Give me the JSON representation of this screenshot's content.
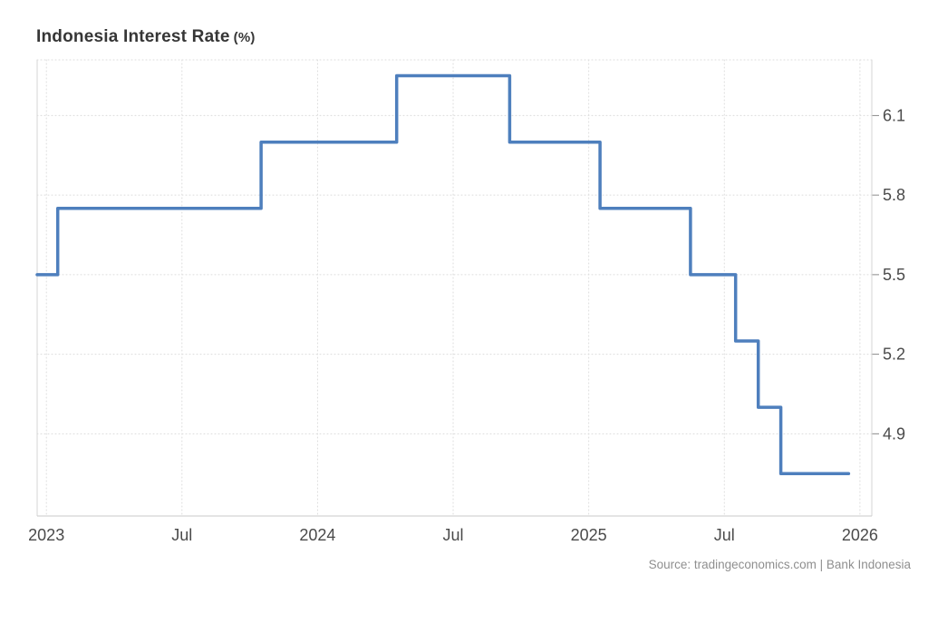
{
  "chart_data": {
    "type": "line",
    "subtype": "step",
    "title": "Indonesia Interest Rate",
    "title_unit": "(%)",
    "source": "Source: tradingeconomics.com | Bank Indonesia",
    "xlabel": "",
    "ylabel": "",
    "legend_position": "none",
    "grid": "dotted",
    "line_color": "#4e7fbd",
    "axis_range": {
      "x_start": "2022-12-19",
      "x_end": "2026-01-17",
      "y_min": 4.59,
      "y_max": 6.31
    },
    "y_ticks": [
      {
        "value": 6.1,
        "label": "6.1"
      },
      {
        "value": 5.8,
        "label": "5.8"
      },
      {
        "value": 5.5,
        "label": "5.5"
      },
      {
        "value": 5.2,
        "label": "5.2"
      },
      {
        "value": 4.9,
        "label": "4.9"
      }
    ],
    "x_ticks": [
      {
        "date": "2023-01",
        "label": "2023"
      },
      {
        "date": "2023-07",
        "label": "Jul"
      },
      {
        "date": "2024-01",
        "label": "2024"
      },
      {
        "date": "2024-07",
        "label": "Jul"
      },
      {
        "date": "2025-01",
        "label": "2025"
      },
      {
        "date": "2025-07",
        "label": "Jul"
      },
      {
        "date": "2026-01",
        "label": "2026"
      }
    ],
    "series": [
      {
        "name": "Indonesia Interest Rate",
        "color": "#4e7fbd",
        "points": [
          {
            "date": "2022-12",
            "value": 5.5
          },
          {
            "date": "2023-01",
            "value": 5.75
          },
          {
            "date": "2023-02",
            "value": 5.75
          },
          {
            "date": "2023-03",
            "value": 5.75
          },
          {
            "date": "2023-04",
            "value": 5.75
          },
          {
            "date": "2023-05",
            "value": 5.75
          },
          {
            "date": "2023-06",
            "value": 5.75
          },
          {
            "date": "2023-07",
            "value": 5.75
          },
          {
            "date": "2023-08",
            "value": 5.75
          },
          {
            "date": "2023-09",
            "value": 5.75
          },
          {
            "date": "2023-10",
            "value": 6.0
          },
          {
            "date": "2023-11",
            "value": 6.0
          },
          {
            "date": "2023-12",
            "value": 6.0
          },
          {
            "date": "2024-01",
            "value": 6.0
          },
          {
            "date": "2024-02",
            "value": 6.0
          },
          {
            "date": "2024-03",
            "value": 6.0
          },
          {
            "date": "2024-04",
            "value": 6.25
          },
          {
            "date": "2024-05",
            "value": 6.25
          },
          {
            "date": "2024-06",
            "value": 6.25
          },
          {
            "date": "2024-07",
            "value": 6.25
          },
          {
            "date": "2024-08",
            "value": 6.25
          },
          {
            "date": "2024-09",
            "value": 6.0
          },
          {
            "date": "2024-10",
            "value": 6.0
          },
          {
            "date": "2024-11",
            "value": 6.0
          },
          {
            "date": "2024-12",
            "value": 6.0
          },
          {
            "date": "2025-01",
            "value": 5.75
          },
          {
            "date": "2025-02",
            "value": 5.75
          },
          {
            "date": "2025-03",
            "value": 5.75
          },
          {
            "date": "2025-04",
            "value": 5.75
          },
          {
            "date": "2025-05",
            "value": 5.5
          },
          {
            "date": "2025-06",
            "value": 5.5
          },
          {
            "date": "2025-07",
            "value": 5.25
          },
          {
            "date": "2025-08",
            "value": 5.0
          },
          {
            "date": "2025-09",
            "value": 4.75
          },
          {
            "date": "2025-10",
            "value": 4.75
          },
          {
            "date": "2025-11",
            "value": 4.75
          },
          {
            "date": "2025-12",
            "value": 4.75
          }
        ]
      }
    ]
  },
  "colors": {
    "gridline": "#dcdcdc",
    "border": "#d6d6d6",
    "border_bottom": "#c9c9c9",
    "tick": "#8a8a8a",
    "tick_text": "#4a4a4a"
  }
}
